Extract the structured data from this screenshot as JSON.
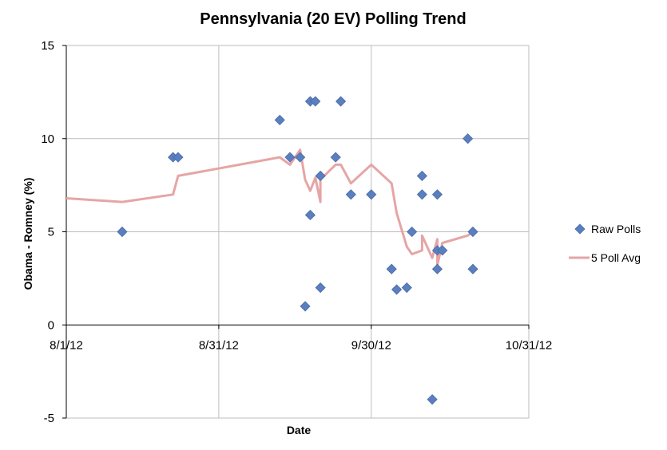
{
  "chart_data": {
    "type": "scatter",
    "title": "Pennsylvania (20 EV) Polling Trend",
    "xlabel": "Date",
    "ylabel": "Obama - Romney (%)",
    "x_axis": {
      "type": "date",
      "min": "2012-08-01",
      "max": "2012-10-31",
      "ticks": [
        "2012-08-01",
        "2012-08-31",
        "2012-09-30",
        "2012-10-31"
      ],
      "tick_labels": [
        "8/1/12",
        "8/31/12",
        "9/30/12",
        "10/31/12"
      ]
    },
    "ylim": [
      -5,
      15
    ],
    "y_ticks": [
      -5,
      0,
      5,
      10,
      15
    ],
    "y_tick_labels": [
      "-5",
      "0",
      "5",
      "10",
      "15"
    ],
    "grid": true,
    "legend": "right",
    "series": [
      {
        "name": "Raw Polls",
        "kind": "scatter",
        "color": "#5a7fbf",
        "points": [
          {
            "x": "2012-08-12",
            "y": 5
          },
          {
            "x": "2012-08-22",
            "y": 9
          },
          {
            "x": "2012-08-23",
            "y": 9
          },
          {
            "x": "2012-09-12",
            "y": 11
          },
          {
            "x": "2012-09-14",
            "y": 9
          },
          {
            "x": "2012-09-16",
            "y": 9
          },
          {
            "x": "2012-09-17",
            "y": 1
          },
          {
            "x": "2012-09-18",
            "y": 12
          },
          {
            "x": "2012-09-18",
            "y": 5.9
          },
          {
            "x": "2012-09-19",
            "y": 12
          },
          {
            "x": "2012-09-20",
            "y": 8
          },
          {
            "x": "2012-09-20",
            "y": 2
          },
          {
            "x": "2012-09-23",
            "y": 9
          },
          {
            "x": "2012-09-24",
            "y": 12
          },
          {
            "x": "2012-09-26",
            "y": 7
          },
          {
            "x": "2012-09-30",
            "y": 7
          },
          {
            "x": "2012-10-04",
            "y": 3
          },
          {
            "x": "2012-10-05",
            "y": 1.9
          },
          {
            "x": "2012-10-07",
            "y": 2
          },
          {
            "x": "2012-10-08",
            "y": 5
          },
          {
            "x": "2012-10-10",
            "y": 8
          },
          {
            "x": "2012-10-10",
            "y": 7
          },
          {
            "x": "2012-10-12",
            "y": -4
          },
          {
            "x": "2012-10-13",
            "y": 7
          },
          {
            "x": "2012-10-13",
            "y": 4
          },
          {
            "x": "2012-10-13",
            "y": 3
          },
          {
            "x": "2012-10-14",
            "y": 4
          },
          {
            "x": "2012-10-19",
            "y": 10
          },
          {
            "x": "2012-10-20",
            "y": 5
          },
          {
            "x": "2012-10-20",
            "y": 3
          }
        ]
      },
      {
        "name": "5 Poll Avg",
        "kind": "line",
        "color": "#e6a5a5",
        "points": [
          {
            "x": "2012-08-01",
            "y": 6.8
          },
          {
            "x": "2012-08-12",
            "y": 6.6
          },
          {
            "x": "2012-08-22",
            "y": 7.0
          },
          {
            "x": "2012-08-23",
            "y": 8.0
          },
          {
            "x": "2012-09-12",
            "y": 9.0
          },
          {
            "x": "2012-09-14",
            "y": 8.6
          },
          {
            "x": "2012-09-16",
            "y": 9.4
          },
          {
            "x": "2012-09-17",
            "y": 7.8
          },
          {
            "x": "2012-09-18",
            "y": 7.2
          },
          {
            "x": "2012-09-19",
            "y": 7.9
          },
          {
            "x": "2012-09-20",
            "y": 6.6
          },
          {
            "x": "2012-09-20",
            "y": 7.8
          },
          {
            "x": "2012-09-23",
            "y": 8.6
          },
          {
            "x": "2012-09-24",
            "y": 8.6
          },
          {
            "x": "2012-09-26",
            "y": 7.6
          },
          {
            "x": "2012-09-30",
            "y": 8.6
          },
          {
            "x": "2012-10-04",
            "y": 7.6
          },
          {
            "x": "2012-10-05",
            "y": 6.0
          },
          {
            "x": "2012-10-07",
            "y": 4.2
          },
          {
            "x": "2012-10-08",
            "y": 3.8
          },
          {
            "x": "2012-10-10",
            "y": 4.0
          },
          {
            "x": "2012-10-10",
            "y": 4.8
          },
          {
            "x": "2012-10-12",
            "y": 3.6
          },
          {
            "x": "2012-10-13",
            "y": 4.6
          },
          {
            "x": "2012-10-13",
            "y": 3.2
          },
          {
            "x": "2012-10-14",
            "y": 4.4
          },
          {
            "x": "2012-10-19",
            "y": 4.8
          },
          {
            "x": "2012-10-20",
            "y": 5.0
          }
        ]
      }
    ]
  }
}
